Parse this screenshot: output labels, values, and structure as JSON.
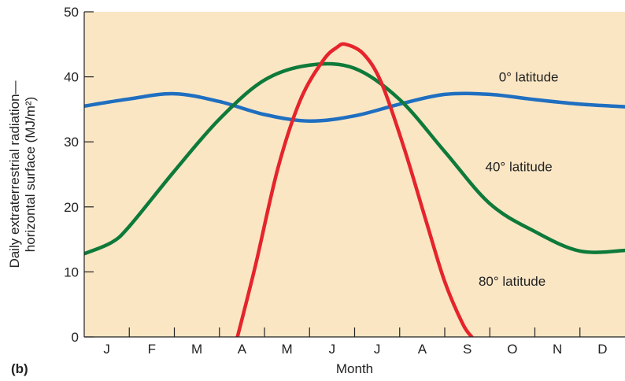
{
  "panel_label": "(b)",
  "chart_data": {
    "type": "line",
    "xlabel": "Month",
    "ylabel_line1": "Daily extraterrestrial radiation—",
    "ylabel_line2": "horizontal surface (MJ/m²)",
    "ylim": [
      0,
      50
    ],
    "yticks": [
      0,
      10,
      20,
      30,
      40,
      50
    ],
    "categories": [
      "J",
      "F",
      "M",
      "A",
      "M",
      "J",
      "J",
      "A",
      "S",
      "O",
      "N",
      "D"
    ],
    "grid": false,
    "background_color": "#fbe6c4",
    "series": [
      {
        "name": "0° latitude",
        "color": "#1f6fc0",
        "x": [
          0,
          1,
          2,
          3,
          4,
          5,
          6,
          7,
          8,
          9,
          10,
          11,
          12
        ],
        "y": [
          35.5,
          36.6,
          37.4,
          36.2,
          34.2,
          33.2,
          34.0,
          35.8,
          37.3,
          37.3,
          36.5,
          35.8,
          35.4
        ]
      },
      {
        "name": "40° latitude",
        "color": "#0e7a3a",
        "x": [
          0,
          0.6,
          1,
          2,
          3,
          4,
          5,
          6,
          7,
          8,
          9,
          10,
          11,
          12
        ],
        "y": [
          12.8,
          14.5,
          17.0,
          25.5,
          33.5,
          39.5,
          41.8,
          41.3,
          36.5,
          28.5,
          20.5,
          16.2,
          13.2,
          13.3
        ]
      },
      {
        "name": "80° latitude",
        "color": "#e5242b",
        "x": [
          3.4,
          3.8,
          4.3,
          4.8,
          5.3,
          5.6,
          5.8,
          6.2,
          6.6,
          7.1,
          7.6,
          8.0,
          8.4,
          8.6
        ],
        "y": [
          0,
          11.0,
          26.0,
          36.5,
          42.5,
          44.5,
          45.0,
          43.5,
          39.0,
          29.0,
          17.5,
          8.5,
          2.0,
          0
        ]
      }
    ],
    "annotations": [
      {
        "text": "0° latitude",
        "series": "0° latitude",
        "x": 9.2,
        "y": 40.0
      },
      {
        "text": "40° latitude",
        "series": "40° latitude",
        "x": 8.9,
        "y": 26.2
      },
      {
        "text": "80° latitude",
        "series": "80° latitude",
        "x": 8.75,
        "y": 8.6
      }
    ]
  }
}
